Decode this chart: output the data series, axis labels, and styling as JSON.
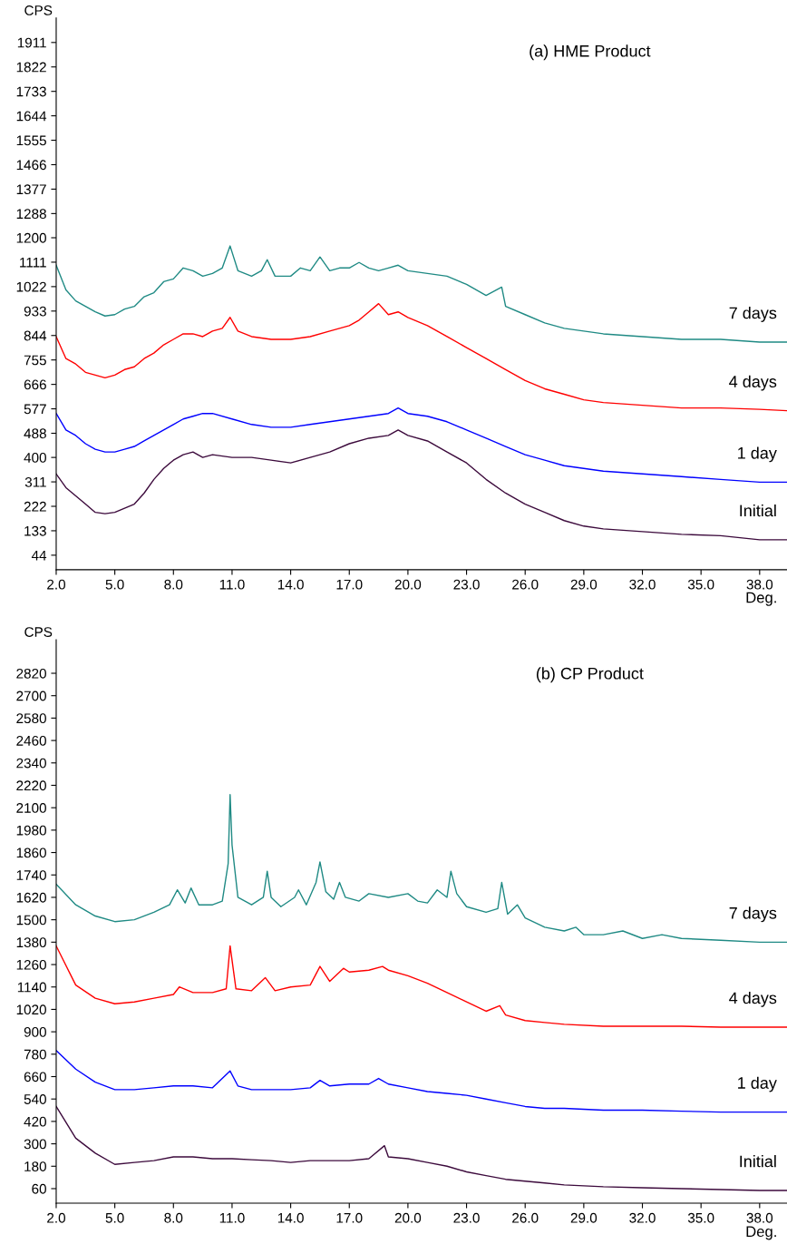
{
  "chart_data": [
    {
      "type": "line",
      "title": "(a) HME Product",
      "xlabel": "Deg.",
      "ylabel": "CPS",
      "xlim": [
        2.0,
        39.4
      ],
      "ylim": [
        -9,
        2000
      ],
      "xticks": [
        {
          "value": 2,
          "label": "2.0"
        },
        {
          "value": 5,
          "label": "5.0"
        },
        {
          "value": 8,
          "label": "8.0"
        },
        {
          "value": 11,
          "label": "11.0"
        },
        {
          "value": 14,
          "label": "14.0"
        },
        {
          "value": 17,
          "label": "17.0"
        },
        {
          "value": 20,
          "label": "20.0"
        },
        {
          "value": 23,
          "label": "23.0"
        },
        {
          "value": 26,
          "label": "26.0"
        },
        {
          "value": 29,
          "label": "29.0"
        },
        {
          "value": 32,
          "label": "32.0"
        },
        {
          "value": 35,
          "label": "35.0"
        },
        {
          "value": 38,
          "label": "38.0"
        }
      ],
      "yticks": [
        44,
        133,
        222,
        311,
        400,
        488,
        577,
        666,
        755,
        844,
        933,
        1022,
        1111,
        1200,
        1288,
        1377,
        1466,
        1555,
        1644,
        1733,
        1822,
        1911
      ],
      "grid": false,
      "legend": false,
      "marker": "none",
      "line_style": "solid",
      "series": [
        {
          "name": "7 days",
          "color": "#1f8a84",
          "x": [
            2,
            2.5,
            3,
            3.5,
            4,
            4.5,
            5,
            5.5,
            6,
            6.5,
            7,
            7.5,
            8,
            8.5,
            9,
            9.5,
            10,
            10.5,
            10.9,
            11.3,
            12,
            12.5,
            12.8,
            13.2,
            14,
            14.5,
            15,
            15.5,
            16,
            16.5,
            17,
            17.5,
            18,
            18.5,
            19,
            19.5,
            20,
            21,
            22,
            23,
            24,
            24.8,
            25,
            26,
            27,
            28,
            29,
            30,
            32,
            34,
            36,
            38,
            39.4
          ],
          "values": [
            1100,
            1010,
            970,
            950,
            930,
            915,
            920,
            940,
            950,
            985,
            1000,
            1040,
            1050,
            1090,
            1080,
            1060,
            1070,
            1090,
            1170,
            1080,
            1060,
            1080,
            1120,
            1060,
            1060,
            1090,
            1080,
            1130,
            1080,
            1090,
            1090,
            1110,
            1090,
            1080,
            1090,
            1100,
            1080,
            1070,
            1060,
            1030,
            990,
            1020,
            950,
            920,
            890,
            870,
            860,
            850,
            840,
            830,
            830,
            820,
            820
          ]
        },
        {
          "name": "4 days",
          "color": "#ff0000",
          "x": [
            2,
            2.5,
            3,
            3.5,
            4,
            4.5,
            5,
            5.5,
            6,
            6.5,
            7,
            7.5,
            8,
            8.5,
            9,
            9.5,
            10,
            10.5,
            10.9,
            11.3,
            12,
            13,
            14,
            15,
            16,
            17,
            17.5,
            18,
            18.5,
            19,
            19.5,
            20,
            21,
            22,
            23,
            24,
            25,
            26,
            27,
            28,
            29,
            30,
            32,
            34,
            36,
            38,
            39.4
          ],
          "values": [
            840,
            760,
            740,
            710,
            700,
            690,
            700,
            720,
            730,
            760,
            780,
            810,
            830,
            850,
            850,
            840,
            860,
            870,
            910,
            860,
            840,
            830,
            830,
            840,
            860,
            880,
            900,
            930,
            960,
            920,
            930,
            910,
            880,
            840,
            800,
            760,
            720,
            680,
            650,
            630,
            610,
            600,
            590,
            580,
            580,
            575,
            570
          ]
        },
        {
          "name": "1 day",
          "color": "#0000ff",
          "x": [
            2,
            2.5,
            3,
            3.5,
            4,
            4.5,
            5,
            5.5,
            6,
            6.5,
            7,
            7.5,
            8,
            8.5,
            9,
            9.5,
            10,
            11,
            12,
            13,
            14,
            15,
            16,
            17,
            18,
            19,
            19.5,
            20,
            21,
            22,
            23,
            24,
            25,
            26,
            27,
            28,
            29,
            30,
            32,
            34,
            36,
            38,
            39.4
          ],
          "values": [
            560,
            500,
            480,
            450,
            430,
            420,
            420,
            430,
            440,
            460,
            480,
            500,
            520,
            540,
            550,
            560,
            560,
            540,
            520,
            510,
            510,
            520,
            530,
            540,
            550,
            560,
            580,
            560,
            550,
            530,
            500,
            470,
            440,
            410,
            390,
            370,
            360,
            350,
            340,
            330,
            320,
            310,
            310
          ]
        },
        {
          "name": "Initial",
          "color": "#3c0a3c",
          "x": [
            2,
            2.5,
            3,
            3.5,
            4,
            4.5,
            5,
            5.5,
            6,
            6.5,
            7,
            7.5,
            8,
            8.5,
            9,
            9.5,
            10,
            11,
            12,
            13,
            14,
            15,
            16,
            17,
            18,
            19,
            19.5,
            20,
            21,
            22,
            23,
            24,
            25,
            26,
            27,
            28,
            29,
            30,
            32,
            34,
            36,
            38,
            39.4
          ],
          "values": [
            340,
            290,
            260,
            230,
            200,
            195,
            200,
            215,
            230,
            270,
            320,
            360,
            390,
            410,
            420,
            400,
            410,
            400,
            400,
            390,
            380,
            400,
            420,
            450,
            470,
            480,
            500,
            480,
            460,
            420,
            380,
            320,
            270,
            230,
            200,
            170,
            150,
            140,
            130,
            120,
            115,
            100,
            100
          ]
        }
      ]
    },
    {
      "type": "line",
      "title": "(b) CP Product",
      "xlabel": "Deg.",
      "ylabel": "CPS",
      "xlim": [
        2.0,
        39.4
      ],
      "ylim": [
        -18,
        3000
      ],
      "xticks": [
        {
          "value": 2,
          "label": "2.0"
        },
        {
          "value": 5,
          "label": "5.0"
        },
        {
          "value": 8,
          "label": "8.0"
        },
        {
          "value": 11,
          "label": "11.0"
        },
        {
          "value": 14,
          "label": "14.0"
        },
        {
          "value": 17,
          "label": "17.0"
        },
        {
          "value": 20,
          "label": "20.0"
        },
        {
          "value": 23,
          "label": "23.0"
        },
        {
          "value": 26,
          "label": "26.0"
        },
        {
          "value": 29,
          "label": "29.0"
        },
        {
          "value": 32,
          "label": "32.0"
        },
        {
          "value": 35,
          "label": "35.0"
        },
        {
          "value": 38,
          "label": "38.0"
        }
      ],
      "yticks": [
        60,
        180,
        300,
        420,
        540,
        660,
        780,
        900,
        1020,
        1140,
        1260,
        1380,
        1500,
        1620,
        1740,
        1860,
        1980,
        2100,
        2220,
        2340,
        2460,
        2580,
        2700,
        2820
      ],
      "grid": false,
      "legend": false,
      "marker": "none",
      "line_style": "solid",
      "series": [
        {
          "name": "7 days",
          "color": "#1f8a84",
          "x": [
            2,
            3,
            4,
            5,
            6,
            7,
            7.8,
            8.2,
            8.6,
            8.9,
            9.3,
            10,
            10.5,
            10.8,
            10.9,
            11.0,
            11.3,
            12,
            12.6,
            12.8,
            13.0,
            13.5,
            14.2,
            14.4,
            14.8,
            15.3,
            15.5,
            15.8,
            16.2,
            16.5,
            16.8,
            17.5,
            18,
            19,
            20,
            20.5,
            21,
            21.5,
            22,
            22.2,
            22.5,
            23,
            24,
            24.6,
            24.8,
            25.1,
            25.6,
            26,
            27,
            28,
            28.6,
            29,
            30,
            31,
            32,
            33,
            34,
            36,
            38,
            39.4
          ],
          "values": [
            1690,
            1580,
            1520,
            1490,
            1500,
            1540,
            1580,
            1660,
            1590,
            1670,
            1580,
            1580,
            1600,
            1800,
            2170,
            1900,
            1620,
            1580,
            1620,
            1760,
            1620,
            1570,
            1620,
            1660,
            1580,
            1700,
            1810,
            1650,
            1610,
            1700,
            1620,
            1600,
            1640,
            1620,
            1640,
            1600,
            1590,
            1660,
            1620,
            1760,
            1640,
            1570,
            1540,
            1560,
            1700,
            1530,
            1580,
            1510,
            1460,
            1440,
            1460,
            1420,
            1420,
            1440,
            1400,
            1420,
            1400,
            1390,
            1380,
            1380
          ]
        },
        {
          "name": "4 days",
          "color": "#ff0000",
          "x": [
            2,
            3,
            4,
            5,
            6,
            7,
            8,
            8.3,
            9,
            10,
            10.7,
            10.9,
            11.2,
            12,
            12.7,
            13.2,
            14,
            15,
            15.5,
            16,
            16.7,
            17,
            18,
            18.7,
            19,
            20,
            21,
            22,
            23,
            24,
            24.7,
            25,
            26,
            27,
            28,
            30,
            32,
            34,
            36,
            38,
            39.4
          ],
          "values": [
            1360,
            1150,
            1080,
            1050,
            1060,
            1080,
            1100,
            1140,
            1110,
            1110,
            1130,
            1360,
            1130,
            1120,
            1190,
            1120,
            1140,
            1150,
            1250,
            1170,
            1240,
            1220,
            1230,
            1250,
            1230,
            1200,
            1160,
            1110,
            1060,
            1010,
            1040,
            990,
            960,
            950,
            940,
            930,
            930,
            930,
            925,
            925,
            925
          ]
        },
        {
          "name": "1 day",
          "color": "#0000ff",
          "x": [
            2,
            3,
            4,
            5,
            6,
            7,
            8,
            9,
            10,
            10.9,
            11.3,
            12,
            13,
            14,
            15,
            15.5,
            16,
            17,
            18,
            18.5,
            19,
            20,
            21,
            22,
            23,
            24,
            25,
            26,
            27,
            28,
            30,
            32,
            34,
            36,
            38,
            39.4
          ],
          "values": [
            800,
            700,
            630,
            590,
            590,
            600,
            610,
            610,
            600,
            690,
            610,
            590,
            590,
            590,
            600,
            640,
            610,
            620,
            620,
            650,
            620,
            600,
            580,
            570,
            560,
            540,
            520,
            500,
            490,
            490,
            480,
            480,
            475,
            470,
            470,
            470
          ]
        },
        {
          "name": "Initial",
          "color": "#3c0a3c",
          "x": [
            2,
            3,
            4,
            5,
            6,
            7,
            8,
            9,
            10,
            11,
            12,
            13,
            14,
            15,
            16,
            17,
            18,
            18.8,
            19,
            20,
            21,
            22,
            23,
            24,
            25,
            26,
            27,
            28,
            30,
            32,
            34,
            36,
            38,
            39.4
          ],
          "values": [
            500,
            330,
            250,
            190,
            200,
            210,
            230,
            230,
            220,
            220,
            215,
            210,
            200,
            210,
            210,
            210,
            220,
            290,
            230,
            220,
            200,
            180,
            150,
            130,
            110,
            100,
            90,
            80,
            70,
            65,
            60,
            55,
            50,
            50
          ]
        }
      ]
    }
  ]
}
